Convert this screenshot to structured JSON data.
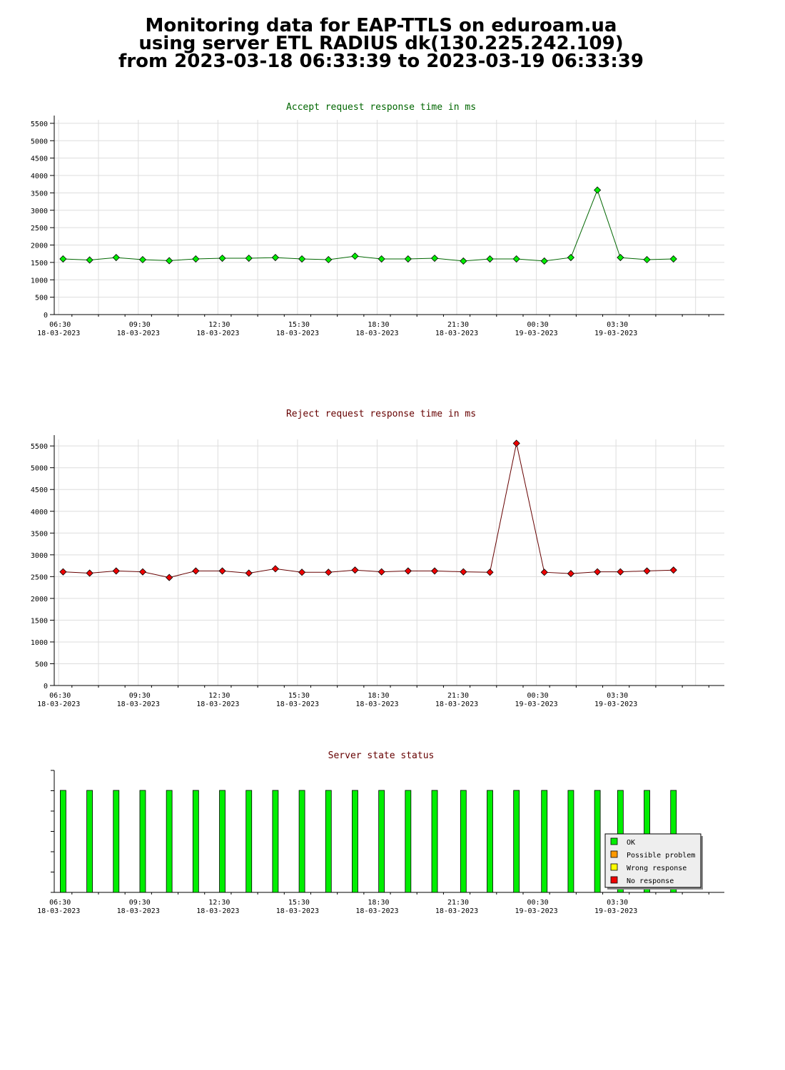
{
  "page": {
    "title_lines": [
      "Monitoring data for EAP-TTLS on eduroam.ua",
      "using server ETL RADIUS dk(130.225.242.109)",
      "from 2023-03-18 06:33:39 to 2023-03-19 06:33:39"
    ]
  },
  "colors": {
    "accept_line": "#006600",
    "accept_point": "#00ee00",
    "reject_line": "#660000",
    "reject_point": "#ee0000",
    "ok": "#00ee00",
    "possible_problem": "#ff9900",
    "wrong_response": "#ffff00",
    "no_response": "#ee0000",
    "grid": "#dddddd"
  },
  "chart_data": [
    {
      "type": "line",
      "title": "Accept request response time in ms",
      "ylim": [
        0,
        5600
      ],
      "yticks": [
        0,
        500,
        1000,
        1500,
        2000,
        2500,
        3000,
        3500,
        4000,
        4500,
        5000,
        5500
      ],
      "xlim": [
        "2023-03-18 06:20",
        "2023-03-19 07:35"
      ],
      "xticks": [
        {
          "time": "06:30",
          "date": "18-03-2023"
        },
        {
          "time": "09:30",
          "date": "18-03-2023"
        },
        {
          "time": "12:30",
          "date": "18-03-2023"
        },
        {
          "time": "15:30",
          "date": "18-03-2023"
        },
        {
          "time": "18:30",
          "date": "18-03-2023"
        },
        {
          "time": "21:30",
          "date": "18-03-2023"
        },
        {
          "time": "00:30",
          "date": "19-03-2023"
        },
        {
          "time": "03:30",
          "date": "19-03-2023"
        }
      ],
      "grid": true,
      "series": [
        {
          "x": [
            "2023-03-18 06:40",
            "2023-03-18 07:40",
            "2023-03-18 08:40",
            "2023-03-18 09:40",
            "2023-03-18 10:40",
            "2023-03-18 11:40",
            "2023-03-18 12:40",
            "2023-03-18 13:40",
            "2023-03-18 14:40",
            "2023-03-18 15:40",
            "2023-03-18 16:40",
            "2023-03-18 17:40",
            "2023-03-18 18:40",
            "2023-03-18 19:40",
            "2023-03-18 20:40",
            "2023-03-18 21:45",
            "2023-03-18 22:45",
            "2023-03-18 23:45",
            "2023-03-19 00:48",
            "2023-03-19 01:48",
            "2023-03-19 02:48",
            "2023-03-19 03:40",
            "2023-03-19 04:40",
            "2023-03-19 05:40"
          ],
          "y": [
            1600,
            1570,
            1640,
            1580,
            1550,
            1600,
            1620,
            1620,
            1640,
            1600,
            1580,
            1680,
            1600,
            1600,
            1620,
            1540,
            1600,
            1600,
            1540,
            1640,
            3580,
            1640,
            1580,
            1600
          ]
        }
      ]
    },
    {
      "type": "line",
      "title": "Reject request response time in ms",
      "ylim": [
        0,
        5650
      ],
      "yticks": [
        0,
        500,
        1000,
        1500,
        2000,
        2500,
        3000,
        3500,
        4000,
        4500,
        5000,
        5500
      ],
      "xlim": [
        "2023-03-18 06:20",
        "2023-03-19 07:35"
      ],
      "xticks": [
        {
          "time": "06:30",
          "date": "18-03-2023"
        },
        {
          "time": "09:30",
          "date": "18-03-2023"
        },
        {
          "time": "12:30",
          "date": "18-03-2023"
        },
        {
          "time": "15:30",
          "date": "18-03-2023"
        },
        {
          "time": "18:30",
          "date": "18-03-2023"
        },
        {
          "time": "21:30",
          "date": "18-03-2023"
        },
        {
          "time": "00:30",
          "date": "19-03-2023"
        },
        {
          "time": "03:30",
          "date": "19-03-2023"
        }
      ],
      "grid": true,
      "series": [
        {
          "x": [
            "2023-03-18 06:40",
            "2023-03-18 07:40",
            "2023-03-18 08:40",
            "2023-03-18 09:40",
            "2023-03-18 10:40",
            "2023-03-18 11:40",
            "2023-03-18 12:40",
            "2023-03-18 13:40",
            "2023-03-18 14:40",
            "2023-03-18 15:40",
            "2023-03-18 16:40",
            "2023-03-18 17:40",
            "2023-03-18 18:40",
            "2023-03-18 19:40",
            "2023-03-18 20:40",
            "2023-03-18 21:45",
            "2023-03-18 22:45",
            "2023-03-18 23:45",
            "2023-03-19 00:48",
            "2023-03-19 01:48",
            "2023-03-19 02:48",
            "2023-03-19 03:40",
            "2023-03-19 04:40",
            "2023-03-19 05:40"
          ],
          "y": [
            2610,
            2580,
            2630,
            2610,
            2480,
            2630,
            2630,
            2580,
            2680,
            2600,
            2600,
            2650,
            2610,
            2630,
            2630,
            2610,
            2600,
            5560,
            2600,
            2570,
            2610,
            2610,
            2630,
            2650
          ]
        }
      ]
    },
    {
      "type": "bar",
      "title": "Server state status",
      "xlim": [
        "2023-03-18 06:20",
        "2023-03-19 07:35"
      ],
      "xticks": [
        {
          "time": "06:30",
          "date": "18-03-2023"
        },
        {
          "time": "09:30",
          "date": "18-03-2023"
        },
        {
          "time": "12:30",
          "date": "18-03-2023"
        },
        {
          "time": "15:30",
          "date": "18-03-2023"
        },
        {
          "time": "18:30",
          "date": "18-03-2023"
        },
        {
          "time": "21:30",
          "date": "18-03-2023"
        },
        {
          "time": "00:30",
          "date": "19-03-2023"
        },
        {
          "time": "03:30",
          "date": "19-03-2023"
        }
      ],
      "x": [
        "2023-03-18 06:40",
        "2023-03-18 07:40",
        "2023-03-18 08:40",
        "2023-03-18 09:40",
        "2023-03-18 10:40",
        "2023-03-18 11:40",
        "2023-03-18 12:40",
        "2023-03-18 13:40",
        "2023-03-18 14:40",
        "2023-03-18 15:40",
        "2023-03-18 16:40",
        "2023-03-18 17:40",
        "2023-03-18 18:40",
        "2023-03-18 19:40",
        "2023-03-18 20:40",
        "2023-03-18 21:45",
        "2023-03-18 22:45",
        "2023-03-18 23:45",
        "2023-03-19 00:48",
        "2023-03-19 01:48",
        "2023-03-19 02:48",
        "2023-03-19 03:40",
        "2023-03-19 04:40",
        "2023-03-19 05:40"
      ],
      "states": [
        "OK",
        "OK",
        "OK",
        "OK",
        "OK",
        "OK",
        "OK",
        "OK",
        "OK",
        "OK",
        "OK",
        "OK",
        "OK",
        "OK",
        "OK",
        "OK",
        "OK",
        "OK",
        "OK",
        "OK",
        "OK",
        "OK",
        "OK",
        "OK"
      ],
      "legend": {
        "placement": "bottom-right",
        "entries": [
          {
            "label": "OK",
            "color": "#00ee00"
          },
          {
            "label": "Possible problem",
            "color": "#ff9900"
          },
          {
            "label": "Wrong response",
            "color": "#ffff00"
          },
          {
            "label": "No response",
            "color": "#ee0000"
          }
        ]
      }
    }
  ]
}
